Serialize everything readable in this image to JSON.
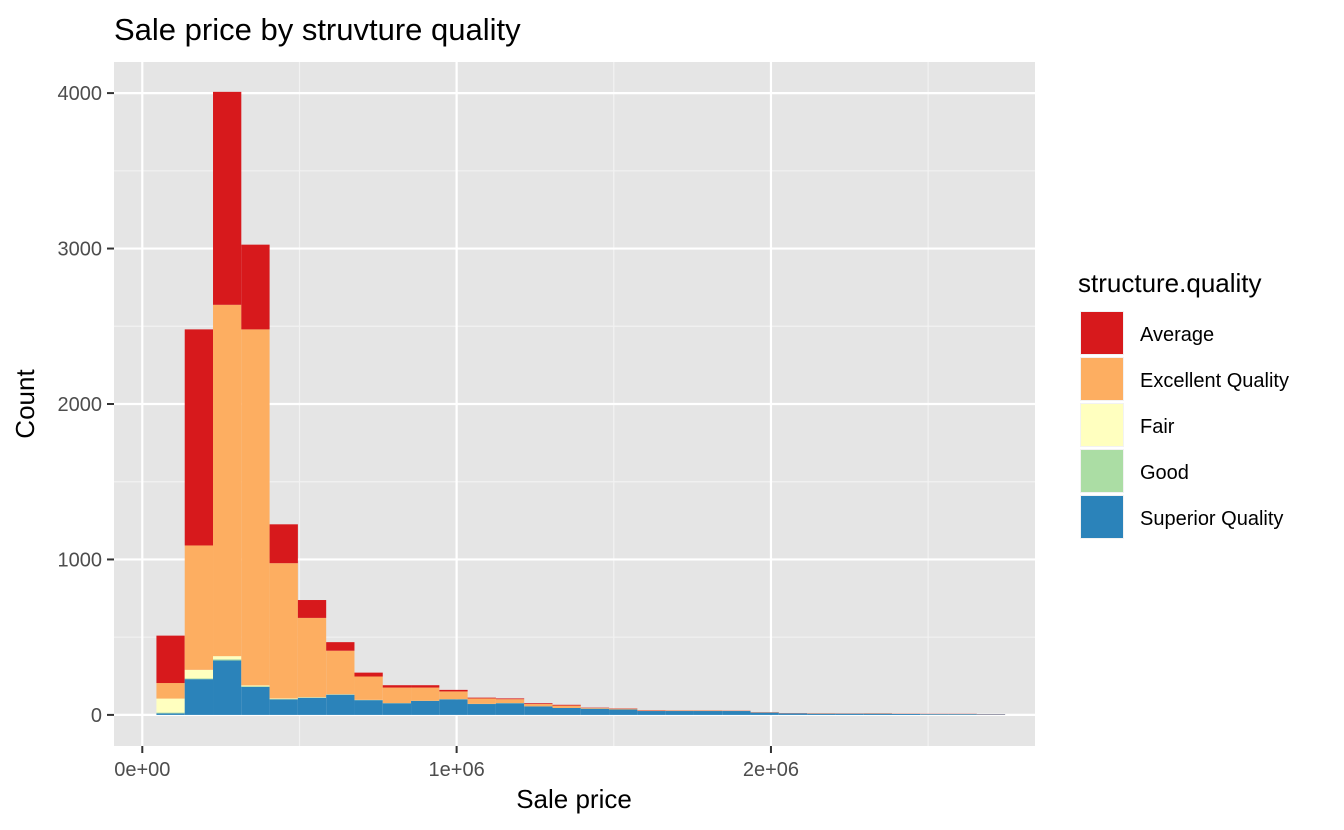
{
  "chart_data": {
    "type": "bar",
    "stacked": true,
    "title": "Sale price by struvture quality",
    "xlabel": "Sale price",
    "ylabel": "Count",
    "xlim": [
      -90000,
      2840000
    ],
    "ylim": [
      -200,
      4200
    ],
    "xticks": [
      0,
      1000000,
      2000000
    ],
    "xtick_labels": [
      "0e+00",
      "1e+06",
      "2e+06"
    ],
    "yticks": [
      0,
      1000,
      2000,
      3000,
      4000
    ],
    "ytick_labels": [
      "0",
      "1000",
      "2000",
      "3000",
      "4000"
    ],
    "grid": true,
    "bin_width": 90000,
    "bins_start": [
      45000,
      135000,
      225000,
      315000,
      405000,
      495000,
      585000,
      675000,
      765000,
      855000,
      945000,
      1035000,
      1125000,
      1215000,
      1305000,
      1395000,
      1485000,
      1575000,
      1665000,
      1755000,
      1845000,
      1935000,
      2025000,
      2115000,
      2205000,
      2295000,
      2385000,
      2475000,
      2565000,
      2655000
    ],
    "legend": {
      "title": "structure.quality",
      "position": "right"
    },
    "series": [
      {
        "name": "Superior Quality",
        "color": "#2b83ba",
        "values": [
          10,
          230,
          350,
          180,
          100,
          110,
          130,
          95,
          75,
          90,
          100,
          70,
          75,
          55,
          45,
          40,
          35,
          25,
          25,
          25,
          25,
          15,
          10,
          8,
          8,
          8,
          6,
          5,
          5,
          3
        ]
      },
      {
        "name": "Good",
        "color": "#abdda4",
        "values": [
          5,
          5,
          8,
          5,
          3,
          2,
          2,
          1,
          1,
          1,
          1,
          1,
          1,
          0,
          0,
          0,
          0,
          0,
          0,
          0,
          0,
          0,
          0,
          0,
          0,
          0,
          0,
          0,
          0,
          0
        ]
      },
      {
        "name": "Fair",
        "color": "#ffffbf",
        "values": [
          90,
          55,
          20,
          5,
          3,
          2,
          1,
          1,
          0,
          0,
          0,
          0,
          0,
          0,
          0,
          0,
          0,
          0,
          0,
          0,
          0,
          0,
          0,
          0,
          0,
          0,
          0,
          0,
          0,
          0
        ]
      },
      {
        "name": "Excellent Quality",
        "color": "#fdae61",
        "values": [
          100,
          800,
          2260,
          2290,
          870,
          510,
          280,
          150,
          100,
          85,
          50,
          35,
          25,
          15,
          15,
          5,
          5,
          3,
          3,
          3,
          2,
          2,
          1,
          2,
          1,
          2,
          1,
          1,
          1,
          1
        ]
      },
      {
        "name": "Average",
        "color": "#d7191c",
        "values": [
          305,
          1390,
          1370,
          545,
          250,
          115,
          55,
          25,
          15,
          15,
          10,
          5,
          5,
          5,
          5,
          2,
          2,
          2,
          1,
          1,
          1,
          1,
          1,
          1,
          1,
          1,
          1,
          1,
          1,
          1
        ]
      }
    ],
    "legend_order": [
      "Average",
      "Excellent Quality",
      "Fair",
      "Good",
      "Superior Quality"
    ]
  }
}
